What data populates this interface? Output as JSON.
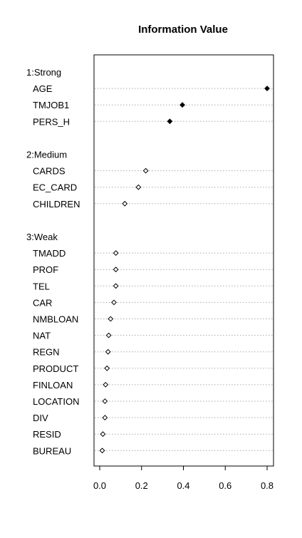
{
  "chart_data": {
    "type": "dotchart",
    "title": "Information Value",
    "xlabel": "",
    "ylabel": "",
    "xlim": [
      0,
      0.82
    ],
    "x_ticks": [
      0.0,
      0.2,
      0.4,
      0.6,
      0.8
    ],
    "x_tick_labels": [
      "0.0",
      "0.2",
      "0.4",
      "0.6",
      "0.8"
    ],
    "grid": "dotted horizontal guide lines per row",
    "groups": [
      {
        "label": "1:Strong",
        "marker": "filled diamond",
        "items": [
          {
            "label": "AGE",
            "value": 0.8
          },
          {
            "label": "TMJOB1",
            "value": 0.395
          },
          {
            "label": "PERS_H",
            "value": 0.335
          }
        ]
      },
      {
        "label": "2:Medium",
        "marker": "open diamond",
        "items": [
          {
            "label": "CARDS",
            "value": 0.22
          },
          {
            "label": "EC_CARD",
            "value": 0.185
          },
          {
            "label": "CHILDREN",
            "value": 0.12
          }
        ]
      },
      {
        "label": "3:Weak",
        "marker": "open diamond",
        "items": [
          {
            "label": "TMADD",
            "value": 0.077
          },
          {
            "label": "PROF",
            "value": 0.077
          },
          {
            "label": "TEL",
            "value": 0.077
          },
          {
            "label": "CAR",
            "value": 0.068
          },
          {
            "label": "NMBLOAN",
            "value": 0.052
          },
          {
            "label": "NAT",
            "value": 0.043
          },
          {
            "label": "REGN",
            "value": 0.04
          },
          {
            "label": "PRODUCT",
            "value": 0.035
          },
          {
            "label": "FINLOAN",
            "value": 0.028
          },
          {
            "label": "LOCATION",
            "value": 0.025
          },
          {
            "label": "DIV",
            "value": 0.025
          },
          {
            "label": "RESID",
            "value": 0.015
          },
          {
            "label": "BUREAU",
            "value": 0.012
          }
        ]
      }
    ]
  }
}
